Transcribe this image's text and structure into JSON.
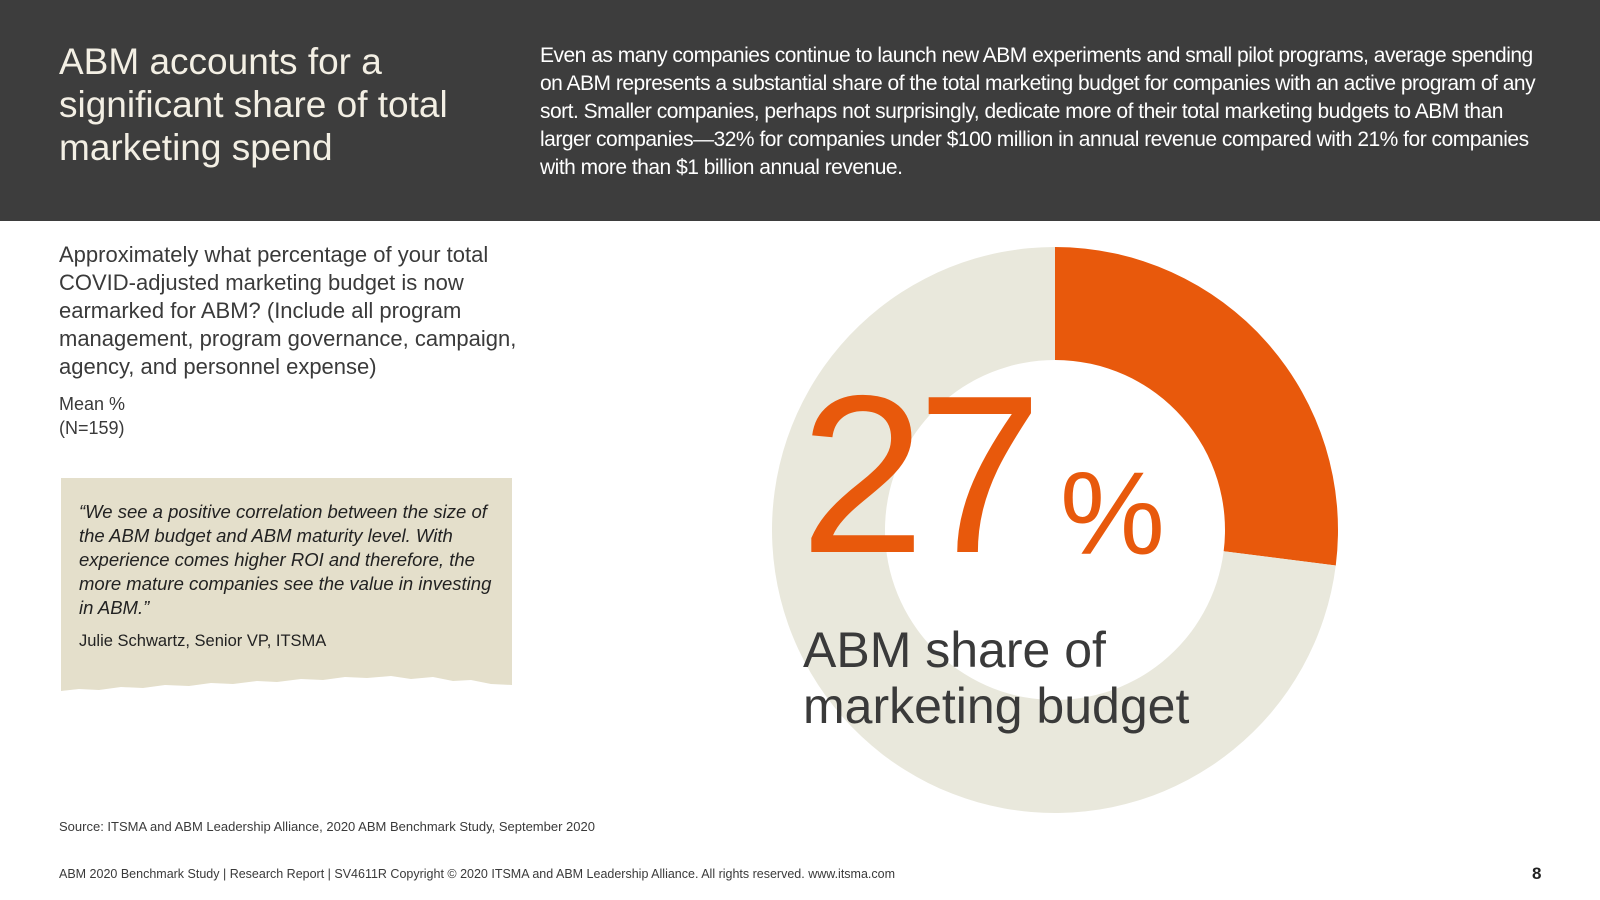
{
  "header": {
    "title": "ABM accounts for a significant share of total marketing spend",
    "intro": "Even as many companies continue to launch new ABM experiments and small pilot programs, average spending on ABM represents a substantial share of the total marketing budget for companies with an active program of any sort. Smaller companies, perhaps not surprisingly, dedicate more of their total marketing budgets to ABM than larger companies—32% for companies under $100 million in annual revenue compared with 21% for companies with more than $1 billion annual revenue."
  },
  "question": {
    "text": "Approximately what percentage of your total COVID-adjusted marketing budget is now earmarked for ABM? (Include all program management, program governance, campaign, agency, and personnel expense)",
    "measure": "Mean %",
    "sample": "(N=159)"
  },
  "quote": {
    "text": "“We see a positive correlation between the size of the ABM budget and ABM maturity level. With experience comes higher ROI and therefore, the more mature companies see the value in investing in ABM.”",
    "author": "Julie Schwartz, Senior VP, ITSMA"
  },
  "chart_data": {
    "type": "pie",
    "donut": true,
    "slices": [
      {
        "label": "ABM share of marketing budget",
        "value": 27,
        "color": "#e8590c"
      },
      {
        "value": 73,
        "color": "#e9e8dc"
      }
    ],
    "center_value": "27",
    "center_unit": "%",
    "center_label": "ABM share of marketing budget"
  },
  "source": "Source: ITSMA and ABM Leadership Alliance, 2020 ABM Benchmark Study, September 2020",
  "footer": "ABM 2020 Benchmark Study | Research Report | SV4611R Copyright © 2020 ITSMA and ABM Leadership Alliance. All rights reserved. www.itsma.com",
  "page_number": "8",
  "colors": {
    "header_bg": "#3d3d3d",
    "accent": "#e8590c",
    "donut_track": "#e9e8dc",
    "quote_bg": "#e4dfcb"
  }
}
